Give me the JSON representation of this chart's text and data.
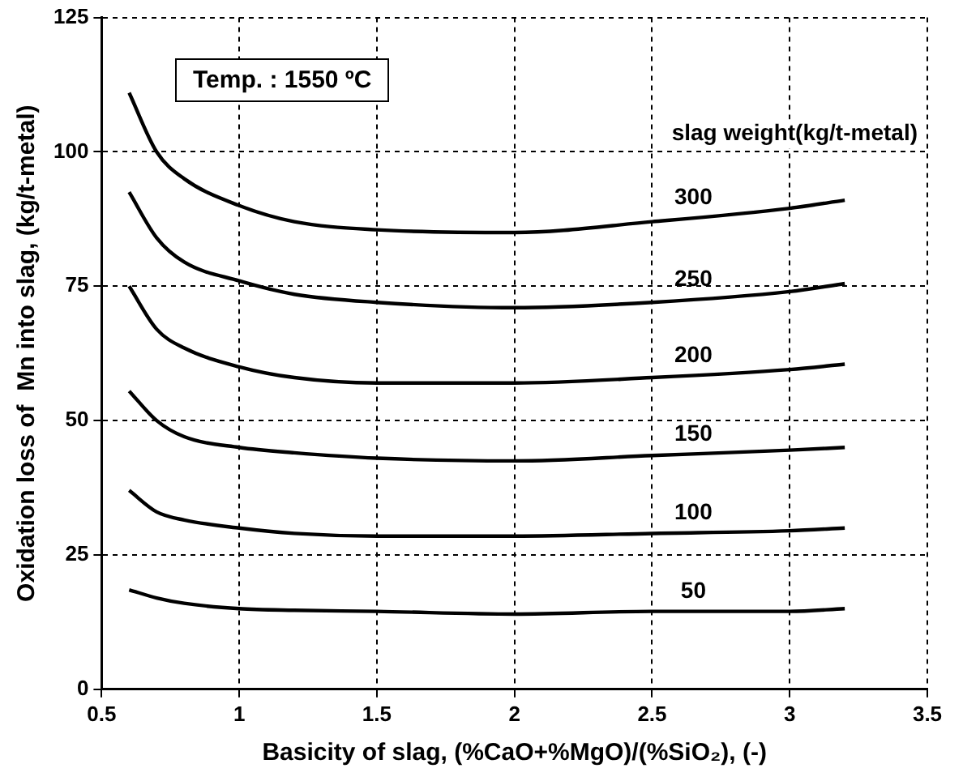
{
  "chart_data": {
    "type": "line",
    "xlabel": "Basicity of slag, (%CaO+%MgO)/(%SiO₂), (-)",
    "ylabel": "Oxidation loss of  Mn into slag, (kg/t-metal)",
    "legend_title": "slag weight(kg/t-metal)",
    "annotations": [
      "Temp. : 1550 ºC"
    ],
    "x": [
      0.6,
      0.7,
      0.8,
      1.0,
      1.2,
      1.5,
      2.0,
      2.5,
      3.0,
      3.2
    ],
    "series": [
      {
        "name": "300",
        "color": "#000000",
        "values": [
          111,
          100,
          95,
          90,
          87,
          85.5,
          85,
          87,
          89.5,
          91
        ]
      },
      {
        "name": "250",
        "color": "#000000",
        "values": [
          92.5,
          84,
          79.5,
          76,
          73.5,
          72,
          71,
          72,
          74,
          75.5
        ]
      },
      {
        "name": "200",
        "color": "#000000",
        "values": [
          75,
          67,
          63.5,
          60,
          58,
          57,
          57,
          58,
          59.5,
          60.5
        ]
      },
      {
        "name": "150",
        "color": "#000000",
        "values": [
          55.5,
          50,
          47,
          45,
          44,
          43,
          42.5,
          43.5,
          44.5,
          45
        ]
      },
      {
        "name": "100",
        "color": "#000000",
        "values": [
          37,
          33,
          31.5,
          30,
          29,
          28.5,
          28.5,
          29,
          29.5,
          30
        ]
      },
      {
        "name": "50",
        "color": "#000000",
        "values": [
          18.5,
          17,
          16,
          15,
          14.7,
          14.5,
          14,
          14.5,
          14.5,
          15
        ]
      }
    ],
    "xlim": [
      0.5,
      3.5
    ],
    "xticks": [
      0.5,
      1,
      1.5,
      2,
      2.5,
      3,
      3.5
    ],
    "ylim": [
      0,
      125
    ],
    "yticks": [
      0,
      25,
      50,
      75,
      100,
      125
    ],
    "grid": true,
    "legend": false,
    "marker": "none",
    "line_style": "solid"
  }
}
